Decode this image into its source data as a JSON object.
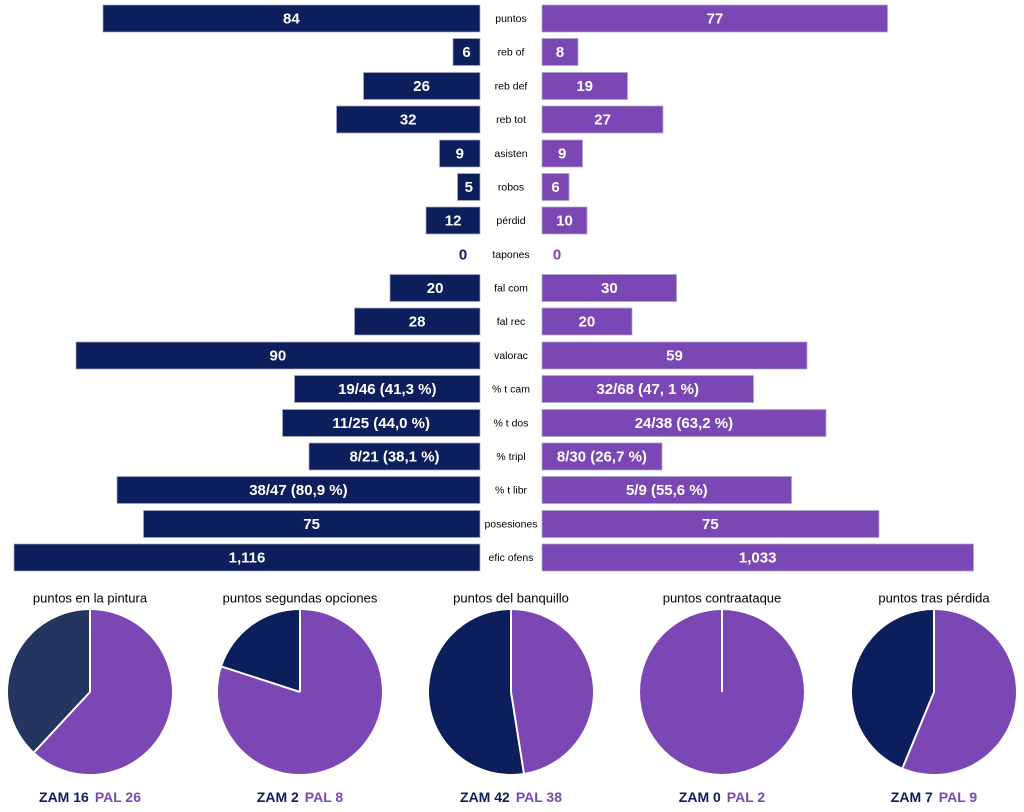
{
  "colors": {
    "zam": "#0c1f5c",
    "pal": "#7b47b5",
    "value_text": "#ffffff",
    "category_text": "#000000"
  },
  "chart_data": [
    {
      "type": "bar",
      "categories": [
        "puntos",
        "reb of",
        "reb def",
        "reb tot",
        "asisten",
        "robos",
        "pérdid",
        "tapones",
        "fal com",
        "fal rec",
        "valorac",
        "% t cam",
        "% t dos",
        "% tripl",
        "% t libr",
        "posesiones",
        "efic ofens"
      ],
      "series": [
        {
          "color": "#0c1f5c",
          "values": [
            84,
            6,
            26,
            32,
            9,
            5,
            12,
            0,
            20,
            28,
            90,
            41.3,
            44.0,
            38.1,
            80.9,
            75,
            1.116
          ],
          "labels": [
            "84",
            "6",
            "26",
            "32",
            "9",
            "5",
            "12",
            "0",
            "20",
            "28",
            "90",
            "19/46 (41,3 %)",
            "11/25 (44,0 %)",
            "8/21 (38,1 %)",
            "38/47 (80,9 %)",
            "75",
            "1,116"
          ]
        },
        {
          "color": "#7b47b5",
          "values": [
            77,
            8,
            19,
            27,
            9,
            6,
            10,
            0,
            30,
            20,
            59,
            47.1,
            63.2,
            26.7,
            55.6,
            75,
            1.033
          ],
          "labels": [
            "77",
            "8",
            "19",
            "27",
            "9",
            "6",
            "10",
            "0",
            "30",
            "20",
            "59",
            "32/68 (47, 1 %)",
            "24/38 (63,2 %)",
            "8/30 (26,7 %)",
            "5/9 (55,6 %)",
            "75",
            "1,033"
          ]
        }
      ],
      "grid": false
    },
    {
      "type": "pie",
      "title": "puntos en la pintura",
      "slices": [
        {
          "label": "ZAM 16",
          "value": 16,
          "color": "#243660"
        },
        {
          "label": "PAL 26",
          "value": 26,
          "color": "#7b47b5"
        }
      ]
    },
    {
      "type": "pie",
      "title": "puntos segundas opciones",
      "slices": [
        {
          "label": "ZAM 2",
          "value": 2,
          "color": "#0c1f5c"
        },
        {
          "label": "PAL 8",
          "value": 8,
          "color": "#7b47b5"
        }
      ]
    },
    {
      "type": "pie",
      "title": "puntos del banquillo",
      "slices": [
        {
          "label": "ZAM 42",
          "value": 42,
          "color": "#0c1f5c"
        },
        {
          "label": "PAL 38",
          "value": 38,
          "color": "#7b47b5"
        }
      ]
    },
    {
      "type": "pie",
      "title": "puntos contraataque",
      "slices": [
        {
          "label": "ZAM 0",
          "value": 0,
          "color": "#0c1f5c"
        },
        {
          "label": "PAL 2",
          "value": 2,
          "color": "#7b47b5"
        }
      ]
    },
    {
      "type": "pie",
      "title": "puntos tras pérdida",
      "slices": [
        {
          "label": "ZAM 7",
          "value": 7,
          "color": "#0c1f5c"
        },
        {
          "label": "PAL 9",
          "value": 9,
          "color": "#7b47b5"
        }
      ]
    }
  ]
}
